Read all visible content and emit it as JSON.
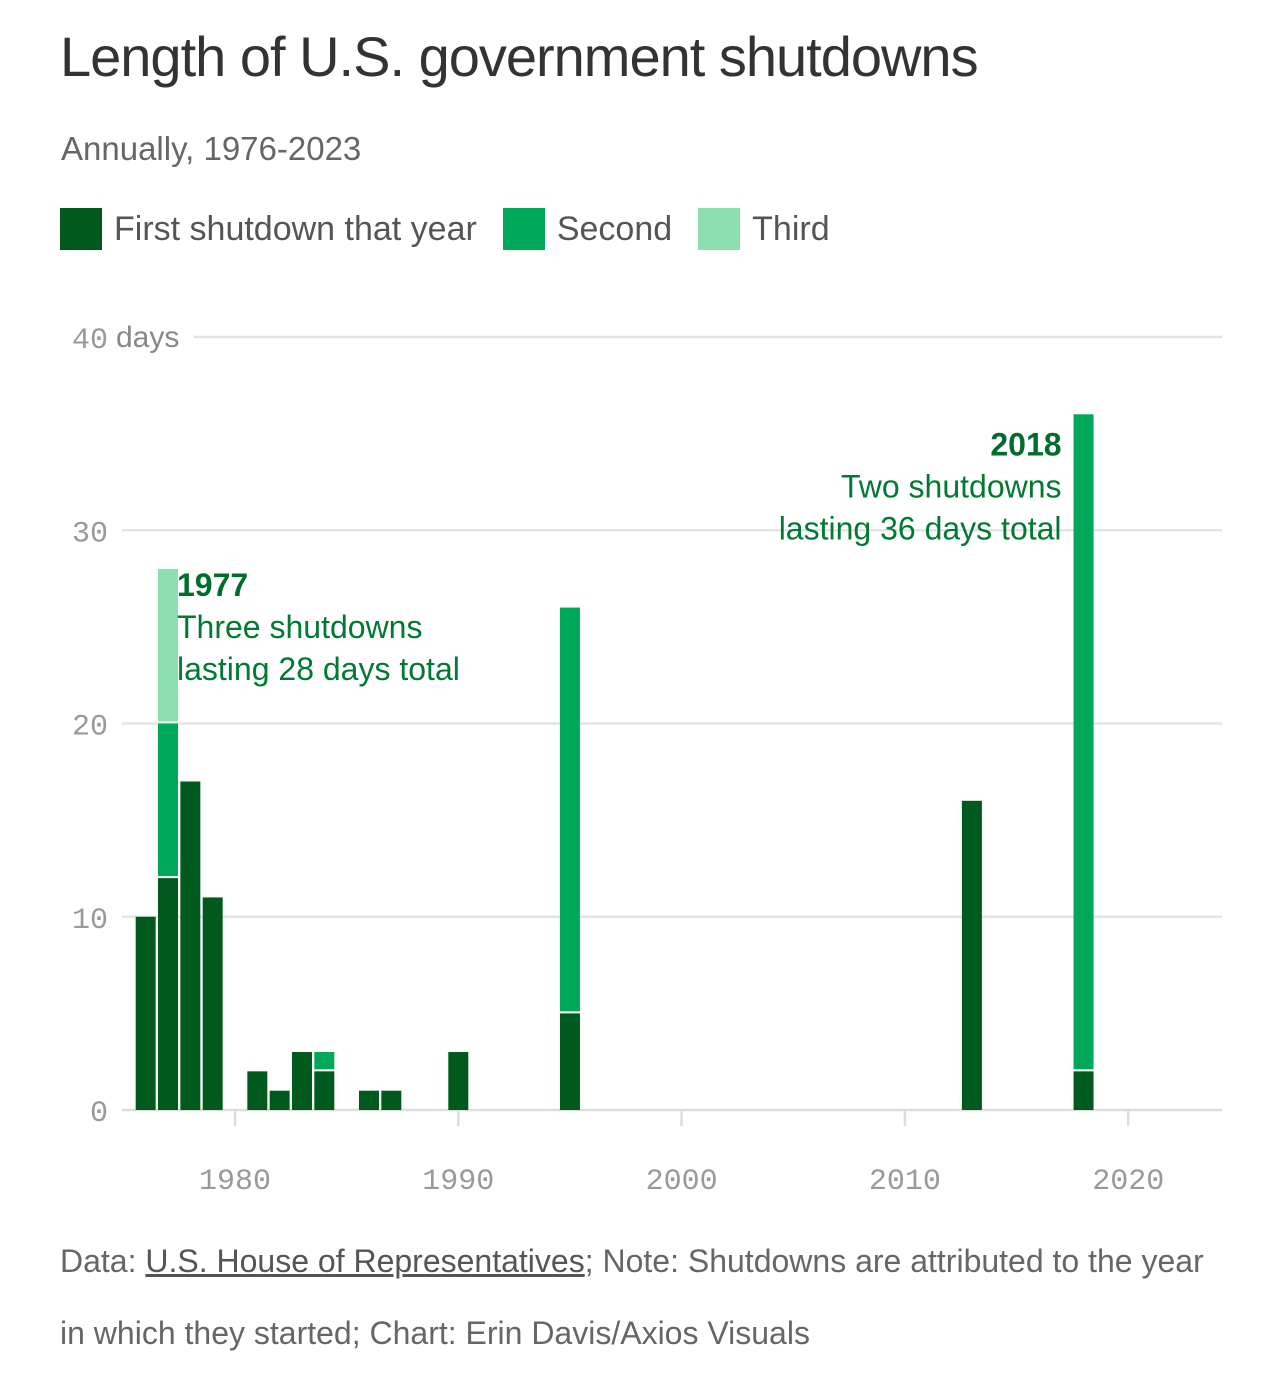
{
  "header": {
    "title": "Length of U.S. government shutdowns",
    "subtitle": "Annually, 1976-2023"
  },
  "legend": [
    {
      "label": "First shutdown that year",
      "color": "#005a1e"
    },
    {
      "label": "Second",
      "color": "#00a859"
    },
    {
      "label": "Third",
      "color": "#8ce0b0"
    }
  ],
  "chart_data": {
    "type": "bar",
    "stacked": true,
    "title": "Length of U.S. government shutdowns",
    "subtitle": "Annually, 1976-2023",
    "xlabel": "",
    "ylabel": "days",
    "y_unit_label": "days",
    "xlim": [
      1975,
      2024
    ],
    "ylim": [
      0,
      40
    ],
    "y_ticks": [
      0,
      10,
      20,
      30,
      40
    ],
    "x_ticks": [
      1980,
      1990,
      2000,
      2010,
      2020
    ],
    "grid": true,
    "legend_position": "top-left",
    "series": [
      {
        "name": "First shutdown that year",
        "color": "#005a1e"
      },
      {
        "name": "Second",
        "color": "#00a859"
      },
      {
        "name": "Third",
        "color": "#8ce0b0"
      }
    ],
    "data": [
      {
        "year": 1976,
        "values": [
          10
        ]
      },
      {
        "year": 1977,
        "values": [
          12,
          8,
          8
        ]
      },
      {
        "year": 1978,
        "values": [
          17
        ]
      },
      {
        "year": 1979,
        "values": [
          11
        ]
      },
      {
        "year": 1981,
        "values": [
          2
        ]
      },
      {
        "year": 1982,
        "values": [
          1
        ]
      },
      {
        "year": 1983,
        "values": [
          3
        ]
      },
      {
        "year": 1984,
        "values": [
          2,
          1
        ]
      },
      {
        "year": 1986,
        "values": [
          1
        ]
      },
      {
        "year": 1987,
        "values": [
          1
        ]
      },
      {
        "year": 1990,
        "values": [
          3
        ]
      },
      {
        "year": 1995,
        "values": [
          5,
          21
        ]
      },
      {
        "year": 2013,
        "values": [
          16
        ]
      },
      {
        "year": 2018,
        "values": [
          2,
          34
        ]
      }
    ],
    "annotations": [
      {
        "year_label": "1977",
        "lines": [
          "Three shutdowns",
          "lasting 28 days total"
        ],
        "x": 1977,
        "y": 28,
        "align": "left"
      },
      {
        "year_label": "2018",
        "lines": [
          "Two shutdowns",
          "lasting 36 days total"
        ],
        "x": 2018,
        "y": 36,
        "align": "right"
      }
    ]
  },
  "footer": {
    "prefix": "Data: ",
    "source_link": "U.S. House of Representatives",
    "rest": "; Note: Shutdowns are attributed to the year in which they started; Chart: Erin Davis/Axios Visuals"
  }
}
